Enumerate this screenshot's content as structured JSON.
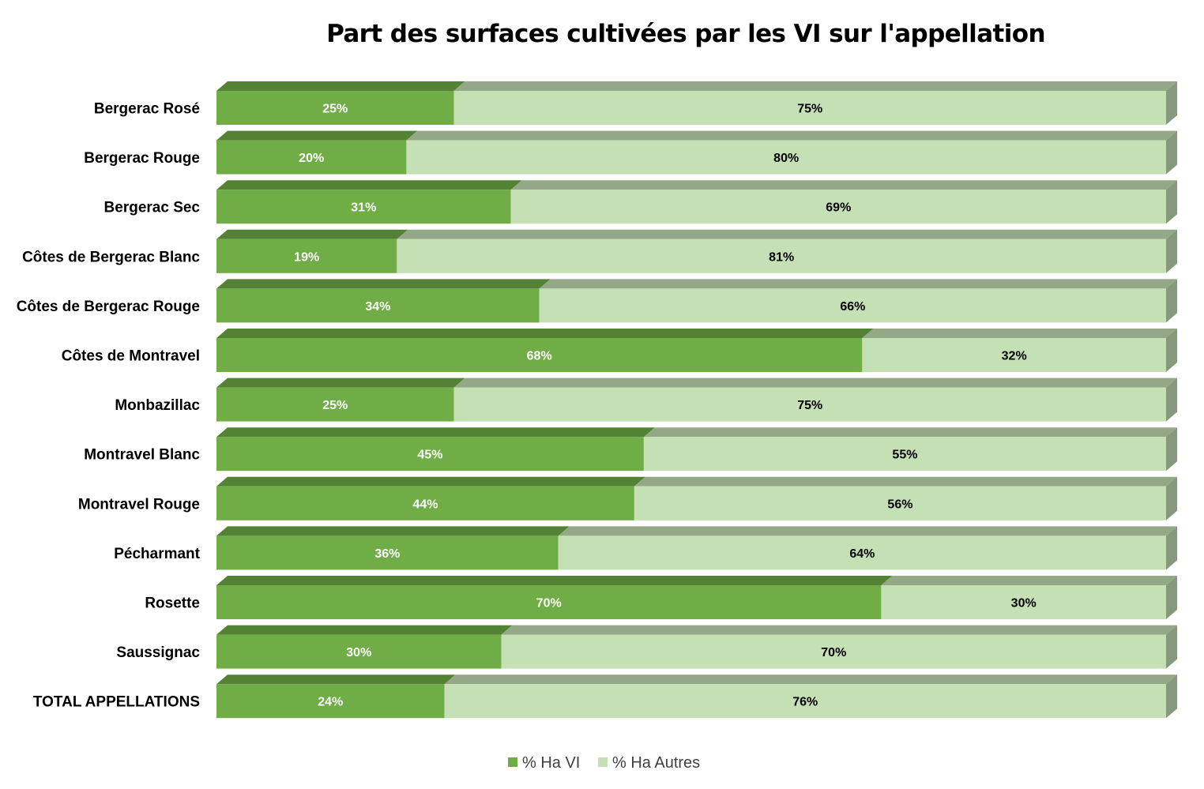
{
  "chart_data": {
    "type": "bar",
    "orientation": "horizontal",
    "stacked": "100%",
    "style": "3d",
    "title": "Part des surfaces cultivées par les VI sur l'appellation",
    "categories": [
      "Bergerac Rosé",
      "Bergerac Rouge",
      "Bergerac Sec",
      "Côtes de Bergerac Blanc",
      "Côtes de Bergerac Rouge",
      "Côtes de Montravel",
      "Monbazillac",
      "Montravel Blanc",
      "Montravel Rouge",
      "Pécharmant",
      "Rosette",
      "Saussignac",
      "TOTAL APPELLATIONS"
    ],
    "series": [
      {
        "name": "% Ha VI",
        "values": [
          25,
          20,
          31,
          19,
          34,
          68,
          25,
          45,
          44,
          36,
          70,
          30,
          24
        ],
        "color": "#70AD47",
        "top_color": "#548235",
        "label_color": "#FFFFFF"
      },
      {
        "name": "% Ha Autres",
        "values": [
          75,
          80,
          69,
          81,
          66,
          32,
          75,
          55,
          56,
          64,
          30,
          70,
          76
        ],
        "color": "#C5E0B4",
        "top_color": "#93A886",
        "side_color": "#87997D",
        "label_color": "#000000"
      }
    ],
    "value_suffix": "%",
    "xlim": [
      0,
      100
    ],
    "grid": false,
    "legend": "bottom"
  }
}
